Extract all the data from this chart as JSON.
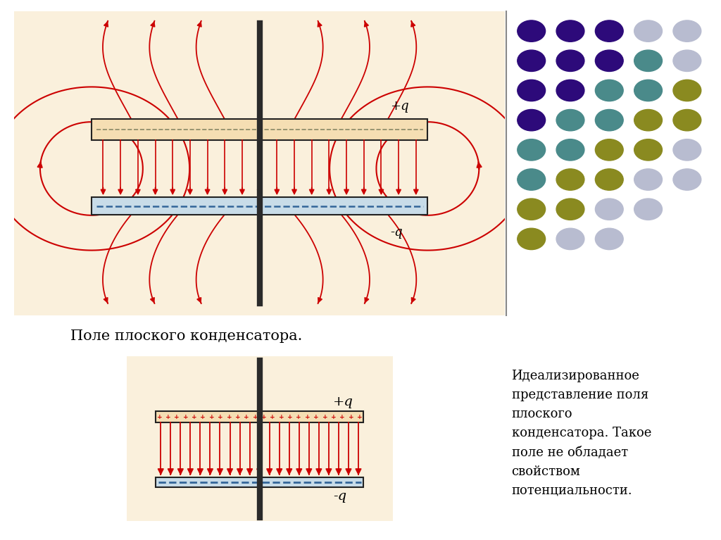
{
  "bg_color": "#FFFFFF",
  "panel_bg": "#FAF0DC",
  "plate_top_color": "#F5DEB3",
  "plate_bot_color": "#C8DCE8",
  "plate_border": "#222222",
  "arrow_color": "#CC0000",
  "rod_color": "#2a2a2a",
  "dash_color_top": "#888866",
  "dash_color_bot": "#336699",
  "label_plus": "+q",
  "label_minus": "-q",
  "caption1": "Поле плоского конденсатора.",
  "caption2": "Идеализированное\nпредставление поля\nплоского\nконденсатора. Такое\nполе не обладает\nсвойством\nпотенциальности.",
  "dot_grid": [
    [
      "#2a0080",
      "#2a0080",
      "#2a0080",
      "#2a8080",
      "#b8b8d0"
    ],
    [
      "#2a0080",
      "#2a0080",
      "#2a8080",
      "#2a8080",
      "#b8b8d0"
    ],
    [
      "#2a0080",
      "#2a0080",
      "#2a8080",
      "#8080a0",
      "#b8b8d0"
    ],
    [
      "#2a0080",
      "#2a8080",
      "#808000",
      "#808000",
      "#b8b8d0"
    ],
    [
      "#2a8080",
      "#2a8080",
      "#808000",
      "#808000",
      "#b8b8d0"
    ],
    [
      "#2a8080",
      "#808000",
      "#808000",
      "#b8b8d0",
      "#b8b8d0"
    ],
    [
      "#808000",
      "#808000",
      "#b8b8d0",
      "#b8b8d0",
      "#ffffff"
    ],
    [
      "#808000",
      "#b8b8d0",
      "#b8b8d0",
      "#ffffff",
      "#ffffff"
    ]
  ]
}
